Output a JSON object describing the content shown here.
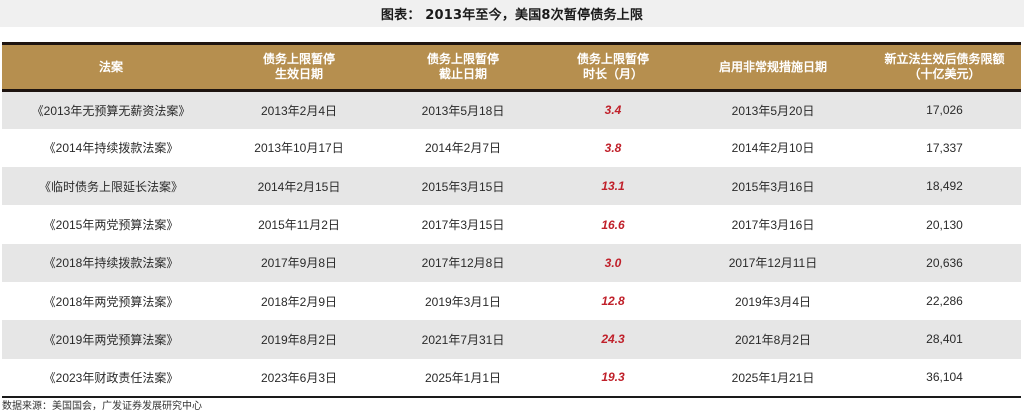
{
  "title": "图表： 2013年至今，美国8次暂停债务上限",
  "table": {
    "headers": [
      {
        "line1": "法案",
        "line2": ""
      },
      {
        "line1": "债务上限暂停",
        "line2": "生效日期"
      },
      {
        "line1": "债务上限暂停",
        "line2": "截止日期"
      },
      {
        "line1": "债务上限暂停",
        "line2": "时长（月）"
      },
      {
        "line1": "启用非常规措施日期",
        "line2": ""
      },
      {
        "line1": "新立法生效后债务限额",
        "line2": "（十亿美元）"
      }
    ],
    "rows": [
      {
        "bill": "《2013年无预算无薪资法案》",
        "start": "2013年2月4日",
        "end": "2013年5月18日",
        "duration": "3.4",
        "extraordinary": "2013年5月20日",
        "limit": "17,026"
      },
      {
        "bill": "《2014年持续拨款法案》",
        "start": "2013年10月17日",
        "end": "2014年2月7日",
        "duration": "3.8",
        "extraordinary": "2014年2月10日",
        "limit": "17,337"
      },
      {
        "bill": "《临时债务上限延长法案》",
        "start": "2014年2月15日",
        "end": "2015年3月15日",
        "duration": "13.1",
        "extraordinary": "2015年3月16日",
        "limit": "18,492"
      },
      {
        "bill": "《2015年两党预算法案》",
        "start": "2015年11月2日",
        "end": "2017年3月15日",
        "duration": "16.6",
        "extraordinary": "2017年3月16日",
        "limit": "20,130"
      },
      {
        "bill": "《2018年持续拨款法案》",
        "start": "2017年9月8日",
        "end": "2017年12月8日",
        "duration": "3.0",
        "extraordinary": "2017年12月11日",
        "limit": "20,636"
      },
      {
        "bill": "《2018年两党预算法案》",
        "start": "2018年2月9日",
        "end": "2019年3月1日",
        "duration": "12.8",
        "extraordinary": "2019年3月4日",
        "limit": "22,286"
      },
      {
        "bill": "《2019年两党预算法案》",
        "start": "2019年8月2日",
        "end": "2021年7月31日",
        "duration": "24.3",
        "extraordinary": "2021年8月2日",
        "limit": "28,401"
      },
      {
        "bill": "《2023年财政责任法案》",
        "start": "2023年6月3日",
        "end": "2025年1月1日",
        "duration": "19.3",
        "extraordinary": "2025年1月21日",
        "limit": "36,104"
      }
    ]
  },
  "footer": "数据来源：美国国会，广发证券发展研究中心",
  "colors": {
    "header_bg": "#b68f4f",
    "header_border": "#1e1410",
    "row_alt_bg": "#e6e6e6",
    "duration_text": "#c0202a",
    "title_band_bg": "#f0f0f0"
  }
}
